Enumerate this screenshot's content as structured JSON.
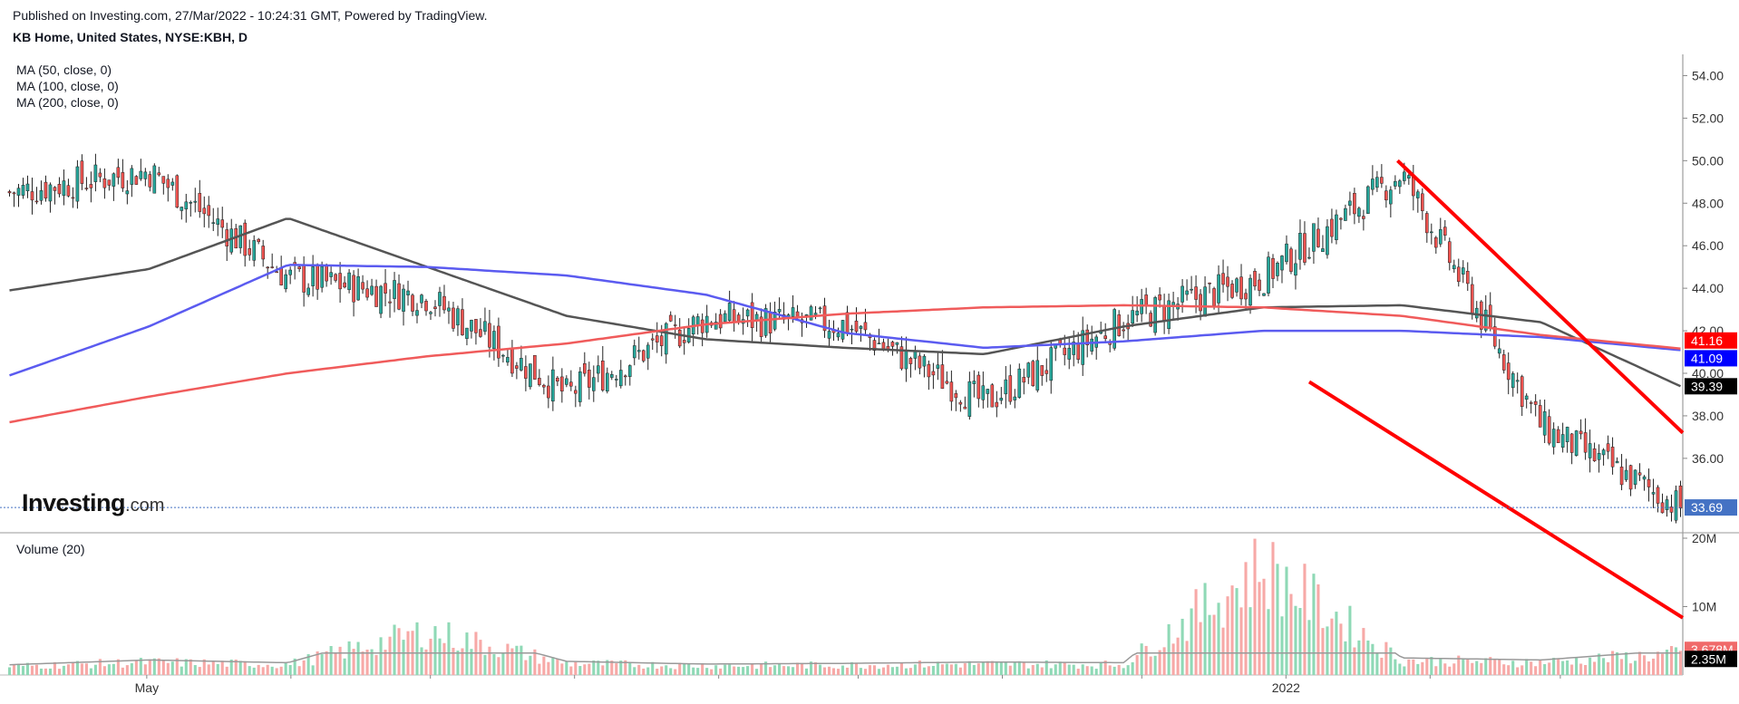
{
  "header": {
    "published": "Published on Investing.com, 27/Mar/2022 - 10:24:31 GMT, Powered by TradingView.",
    "symbol": "KB Home, United States, NYSE:KBH, D"
  },
  "legend": {
    "ma50": "MA (50, close, 0)",
    "ma100": "MA (100, close, 0)",
    "ma200": "MA (200, close, 0)",
    "volume": "Volume (20)"
  },
  "logo": {
    "main": "Investing",
    "suffix": ".com"
  },
  "colors": {
    "up": "#26a69a",
    "down": "#ef5350",
    "up_vol": "#8fd9b6",
    "down_vol": "#f7a9a7",
    "ma50": "#555555",
    "ma100": "#5b5bf0",
    "ma200": "#f05b5b",
    "trend": "#ff0000",
    "last_price": "#4472c4"
  },
  "chart_data": [
    {
      "type": "line",
      "title": "KB Home, United States, NYSE:KBH, D",
      "ylim": [
        32.5,
        55
      ],
      "y_ticks": [
        "36.00",
        "38.00",
        "40.00",
        "42.00",
        "44.00",
        "46.00",
        "48.00",
        "50.00",
        "52.00",
        "54.00"
      ],
      "x_ticks": [
        "May",
        "2022"
      ],
      "x": [
        "2021-04-01",
        "2021-05-01",
        "2021-06-01",
        "2021-07-01",
        "2021-08-01",
        "2021-09-01",
        "2021-10-01",
        "2021-11-01",
        "2021-12-01",
        "2022-01-01",
        "2022-02-01",
        "2022-03-01",
        "2022-03-25"
      ],
      "series": [
        {
          "name": "MA (50, close, 0)",
          "values": [
            43.9,
            44.9,
            47.3,
            45.0,
            42.7,
            41.6,
            41.2,
            40.9,
            42.2,
            43.1,
            43.2,
            42.4,
            39.39
          ]
        },
        {
          "name": "MA (100, close, 0)",
          "values": [
            39.9,
            42.2,
            45.1,
            45.0,
            44.6,
            43.7,
            41.9,
            41.2,
            41.5,
            42.0,
            42.0,
            41.7,
            41.09
          ]
        },
        {
          "name": "MA (200, close, 0)",
          "values": [
            37.7,
            38.9,
            40.0,
            40.8,
            41.4,
            42.3,
            42.8,
            43.1,
            43.2,
            43.1,
            42.7,
            41.8,
            41.16
          ]
        },
        {
          "name": "price",
          "values": [
            48.5,
            49.5,
            44.5,
            43.6,
            39.0,
            42.6,
            42.3,
            38.6,
            42.5,
            44.5,
            49.4,
            37.5,
            33.69
          ]
        }
      ],
      "price_labels": {
        "ma200": "41.16",
        "ma100": "41.09",
        "ma50": "39.39",
        "last": "33.69"
      }
    },
    {
      "type": "bar",
      "title": "Volume (20)",
      "ylim": [
        0,
        20
      ],
      "y_ticks": [
        "10M",
        "20M"
      ],
      "series": [
        {
          "name": "Volume (20)",
          "values": [
            1.5,
            2.2,
            1.8,
            7.5,
            2.0,
            1.6,
            1.7,
            1.9,
            1.8,
            18.5,
            2.5,
            2.2,
            3.678
          ]
        }
      ],
      "labels": {
        "volume": "3.678M",
        "volume_ma": "2.35M"
      }
    }
  ]
}
